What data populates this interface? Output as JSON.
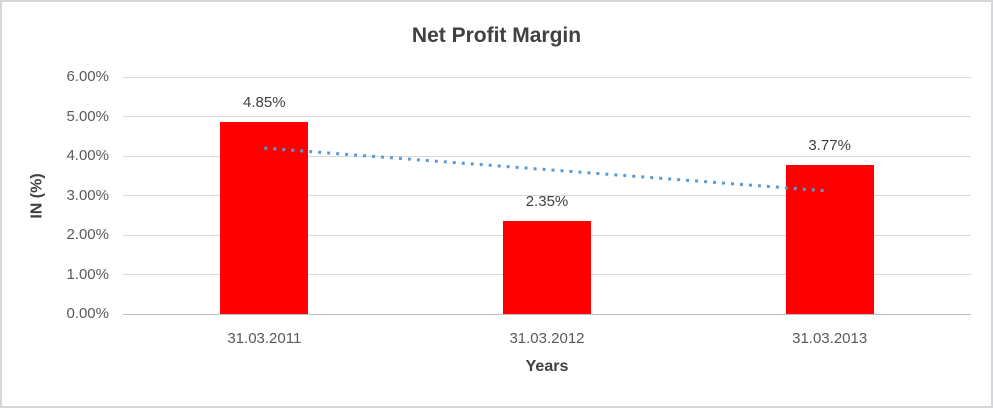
{
  "chart_data": {
    "type": "bar",
    "title": "Net Profit Margin",
    "xlabel": "Years",
    "ylabel": "IN (%)",
    "categories": [
      "31.03.2011",
      "31.03.2012",
      "31.03.2013"
    ],
    "values": [
      4.85,
      2.35,
      3.77
    ],
    "data_labels": [
      "4.85%",
      "2.35%",
      "3.77%"
    ],
    "y_ticks": [
      {
        "value": 6,
        "label": "6.00%"
      },
      {
        "value": 5,
        "label": "5.00%"
      },
      {
        "value": 4,
        "label": "4.00%"
      },
      {
        "value": 3,
        "label": "3.00%"
      },
      {
        "value": 2,
        "label": "2.00%"
      },
      {
        "value": 1,
        "label": "1.00%"
      },
      {
        "value": 0,
        "label": "0.00%"
      }
    ],
    "ylim": [
      0,
      6
    ],
    "grid": true,
    "legend": "none",
    "bar_color": "#ff0000",
    "trendline": {
      "type": "linear",
      "style": "dotted",
      "color": "#5b9bd5",
      "start_value": 4.2,
      "end_value": 3.11
    },
    "colors": {
      "grid": "#d9d9d9",
      "axis_line": "#bfbfbf",
      "tick_label": "#595959",
      "text_dark": "#404040"
    }
  }
}
